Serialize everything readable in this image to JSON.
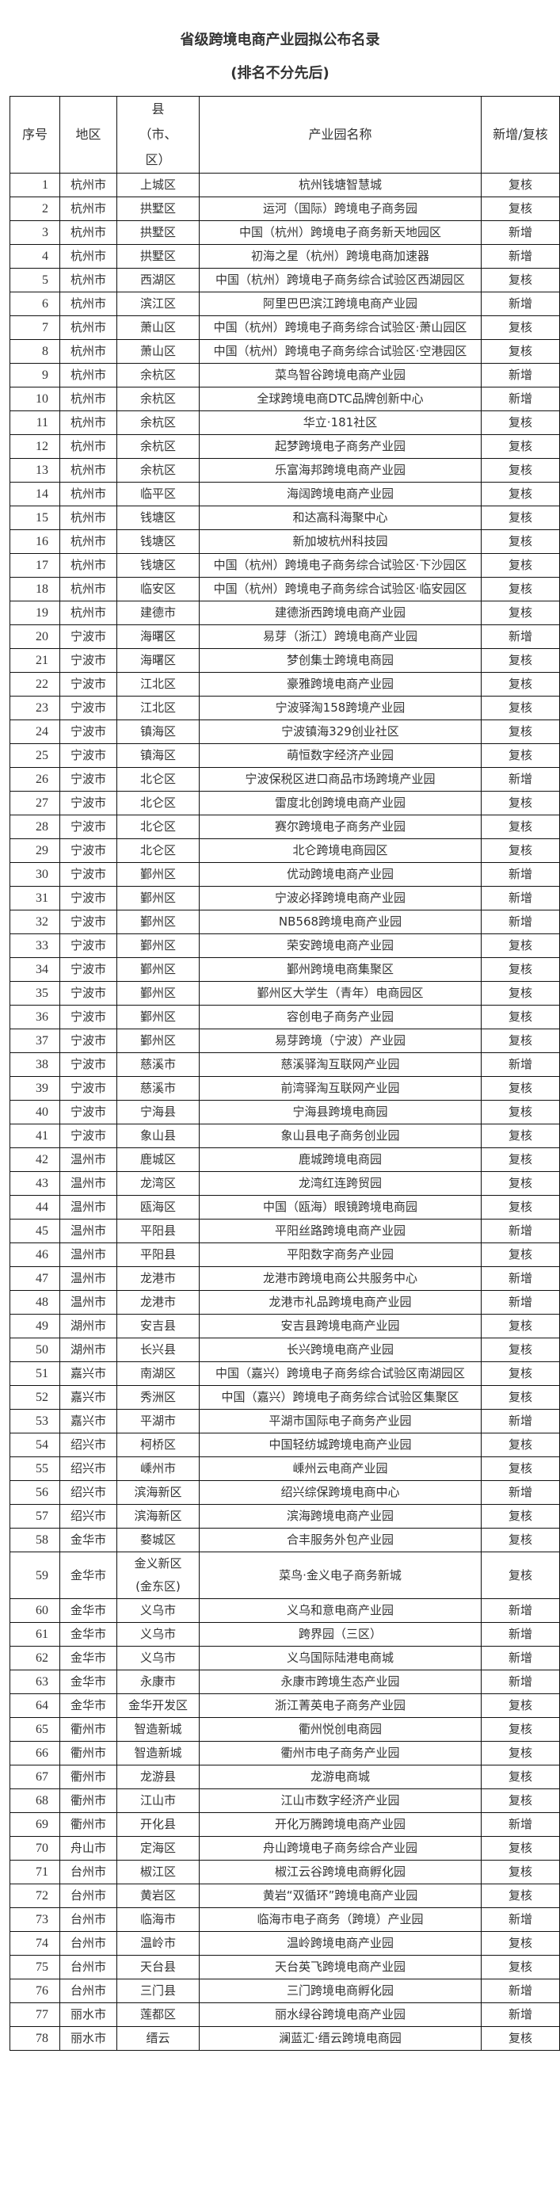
{
  "title": "省级跨境电商产业园拟公布名录",
  "subtitle": "(排名不分先后)",
  "headers": [
    "序号",
    "地区",
    "县（市、区）",
    "产业园名称",
    "新增/复核"
  ],
  "rows": [
    [
      "1",
      "杭州市",
      "上城区",
      "杭州钱塘智慧城",
      "复核"
    ],
    [
      "2",
      "杭州市",
      "拱墅区",
      "运河（国际）跨境电子商务园",
      "复核"
    ],
    [
      "3",
      "杭州市",
      "拱墅区",
      "中国（杭州）跨境电子商务新天地园区",
      "新增"
    ],
    [
      "4",
      "杭州市",
      "拱墅区",
      "初海之星（杭州）跨境电商加速器",
      "新增"
    ],
    [
      "5",
      "杭州市",
      "西湖区",
      "中国（杭州）跨境电子商务综合试验区西湖园区",
      "复核"
    ],
    [
      "6",
      "杭州市",
      "滨江区",
      "阿里巴巴滨江跨境电商产业园",
      "新增"
    ],
    [
      "7",
      "杭州市",
      "萧山区",
      "中国（杭州）跨境电子商务综合试验区·萧山园区",
      "复核"
    ],
    [
      "8",
      "杭州市",
      "萧山区",
      "中国（杭州）跨境电子商务综合试验区·空港园区",
      "复核"
    ],
    [
      "9",
      "杭州市",
      "余杭区",
      "菜鸟智谷跨境电商产业园",
      "新增"
    ],
    [
      "10",
      "杭州市",
      "余杭区",
      "全球跨境电商DTC品牌创新中心",
      "新增"
    ],
    [
      "11",
      "杭州市",
      "余杭区",
      "华立·181社区",
      "复核"
    ],
    [
      "12",
      "杭州市",
      "余杭区",
      "起梦跨境电子商务产业园",
      "复核"
    ],
    [
      "13",
      "杭州市",
      "余杭区",
      "乐富海邦跨境电商产业园",
      "复核"
    ],
    [
      "14",
      "杭州市",
      "临平区",
      "海阔跨境电商产业园",
      "复核"
    ],
    [
      "15",
      "杭州市",
      "钱塘区",
      "和达高科海聚中心",
      "复核"
    ],
    [
      "16",
      "杭州市",
      "钱塘区",
      "新加坡杭州科技园",
      "复核"
    ],
    [
      "17",
      "杭州市",
      "钱塘区",
      "中国（杭州）跨境电子商务综合试验区·下沙园区",
      "复核"
    ],
    [
      "18",
      "杭州市",
      "临安区",
      "中国（杭州）跨境电子商务综合试验区·临安园区",
      "复核"
    ],
    [
      "19",
      "杭州市",
      "建德市",
      "建德浙西跨境电商产业园",
      "复核"
    ],
    [
      "20",
      "宁波市",
      "海曙区",
      "易芽（浙江）跨境电商产业园",
      "新增"
    ],
    [
      "21",
      "宁波市",
      "海曙区",
      "梦创集士跨境电商园",
      "复核"
    ],
    [
      "22",
      "宁波市",
      "江北区",
      "豪雅跨境电商产业园",
      "复核"
    ],
    [
      "23",
      "宁波市",
      "江北区",
      "宁波驿淘158跨境产业园",
      "复核"
    ],
    [
      "24",
      "宁波市",
      "镇海区",
      "宁波镇海329创业社区",
      "复核"
    ],
    [
      "25",
      "宁波市",
      "镇海区",
      "萌恒数字经济产业园",
      "复核"
    ],
    [
      "26",
      "宁波市",
      "北仑区",
      "宁波保税区进口商品市场跨境产业园",
      "新增"
    ],
    [
      "27",
      "宁波市",
      "北仑区",
      "雷度北创跨境电商产业园",
      "复核"
    ],
    [
      "28",
      "宁波市",
      "北仑区",
      "赛尔跨境电子商务产业园",
      "复核"
    ],
    [
      "29",
      "宁波市",
      "北仑区",
      "北仑跨境电商园区",
      "复核"
    ],
    [
      "30",
      "宁波市",
      "鄞州区",
      "优动跨境电商产业园",
      "新增"
    ],
    [
      "31",
      "宁波市",
      "鄞州区",
      "宁波必择跨境电商产业园",
      "新增"
    ],
    [
      "32",
      "宁波市",
      "鄞州区",
      "NB568跨境电商产业园",
      "新增"
    ],
    [
      "33",
      "宁波市",
      "鄞州区",
      "荣安跨境电商产业园",
      "复核"
    ],
    [
      "34",
      "宁波市",
      "鄞州区",
      "鄞州跨境电商集聚区",
      "复核"
    ],
    [
      "35",
      "宁波市",
      "鄞州区",
      "鄞州区大学生（青年）电商园区",
      "复核"
    ],
    [
      "36",
      "宁波市",
      "鄞州区",
      "容创电子商务产业园",
      "复核"
    ],
    [
      "37",
      "宁波市",
      "鄞州区",
      "易芽跨境（宁波）产业园",
      "复核"
    ],
    [
      "38",
      "宁波市",
      "慈溪市",
      "慈溪驿淘互联网产业园",
      "新增"
    ],
    [
      "39",
      "宁波市",
      "慈溪市",
      "前湾驿淘互联网产业园",
      "复核"
    ],
    [
      "40",
      "宁波市",
      "宁海县",
      "宁海县跨境电商园",
      "复核"
    ],
    [
      "41",
      "宁波市",
      "象山县",
      "象山县电子商务创业园",
      "复核"
    ],
    [
      "42",
      "温州市",
      "鹿城区",
      "鹿城跨境电商园",
      "复核"
    ],
    [
      "43",
      "温州市",
      "龙湾区",
      "龙湾红连跨贸园",
      "复核"
    ],
    [
      "44",
      "温州市",
      "瓯海区",
      "中国（瓯海）眼镜跨境电商园",
      "复核"
    ],
    [
      "45",
      "温州市",
      "平阳县",
      "平阳丝路跨境电商产业园",
      "新增"
    ],
    [
      "46",
      "温州市",
      "平阳县",
      "平阳数字商务产业园",
      "复核"
    ],
    [
      "47",
      "温州市",
      "龙港市",
      "龙港市跨境电商公共服务中心",
      "新增"
    ],
    [
      "48",
      "温州市",
      "龙港市",
      "龙港市礼品跨境电商产业园",
      "新增"
    ],
    [
      "49",
      "湖州市",
      "安吉县",
      "安吉县跨境电商产业园",
      "复核"
    ],
    [
      "50",
      "湖州市",
      "长兴县",
      "长兴跨境电商产业园",
      "复核"
    ],
    [
      "51",
      "嘉兴市",
      "南湖区",
      "中国（嘉兴）跨境电子商务综合试验区南湖园区",
      "复核"
    ],
    [
      "52",
      "嘉兴市",
      "秀洲区",
      "中国（嘉兴）跨境电子商务综合试验区集聚区",
      "复核"
    ],
    [
      "53",
      "嘉兴市",
      "平湖市",
      "平湖市国际电子商务产业园",
      "新增"
    ],
    [
      "54",
      "绍兴市",
      "柯桥区",
      "中国轻纺城跨境电商产业园",
      "复核"
    ],
    [
      "55",
      "绍兴市",
      "嵊州市",
      "嵊州云电商产业园",
      "复核"
    ],
    [
      "56",
      "绍兴市",
      "滨海新区",
      "绍兴综保跨境电商中心",
      "新增"
    ],
    [
      "57",
      "绍兴市",
      "滨海新区",
      "滨海跨境电商产业园",
      "复核"
    ],
    [
      "58",
      "金华市",
      "婺城区",
      "合丰服务外包产业园",
      "复核"
    ],
    [
      "59",
      "金华市",
      "金义新区(金东区)",
      "菜鸟·金义电子商务新城",
      "复核"
    ],
    [
      "60",
      "金华市",
      "义乌市",
      "义乌和意电商产业园",
      "新增"
    ],
    [
      "61",
      "金华市",
      "义乌市",
      "跨界园（三区）",
      "新增"
    ],
    [
      "62",
      "金华市",
      "义乌市",
      "义乌国际陆港电商城",
      "新增"
    ],
    [
      "63",
      "金华市",
      "永康市",
      "永康市跨境生态产业园",
      "新增"
    ],
    [
      "64",
      "金华市",
      "金华开发区",
      "浙江菁英电子商务产业园",
      "复核"
    ],
    [
      "65",
      "衢州市",
      "智造新城",
      "衢州悦创电商园",
      "复核"
    ],
    [
      "66",
      "衢州市",
      "智造新城",
      "衢州市电子商务产业园",
      "复核"
    ],
    [
      "67",
      "衢州市",
      "龙游县",
      "龙游电商城",
      "复核"
    ],
    [
      "68",
      "衢州市",
      "江山市",
      "江山市数字经济产业园",
      "复核"
    ],
    [
      "69",
      "衢州市",
      "开化县",
      "开化万腾跨境电商产业园",
      "新增"
    ],
    [
      "70",
      "舟山市",
      "定海区",
      "舟山跨境电子商务综合产业园",
      "复核"
    ],
    [
      "71",
      "台州市",
      "椒江区",
      "椒江云谷跨境电商孵化园",
      "复核"
    ],
    [
      "72",
      "台州市",
      "黄岩区",
      "黄岩“双循环”跨境电商产业园",
      "复核"
    ],
    [
      "73",
      "台州市",
      "临海市",
      "临海市电子商务（跨境）产业园",
      "新增"
    ],
    [
      "74",
      "台州市",
      "温岭市",
      "温岭跨境电商产业园",
      "复核"
    ],
    [
      "75",
      "台州市",
      "天台县",
      "天台英飞跨境电商产业园",
      "复核"
    ],
    [
      "76",
      "台州市",
      "三门县",
      "三门跨境电商孵化园",
      "新增"
    ],
    [
      "77",
      "丽水市",
      "莲都区",
      "丽水绿谷跨境电商产业园",
      "新增"
    ],
    [
      "78",
      "丽水市",
      "缙云",
      "澜蓝汇·缙云跨境电商园",
      "复核"
    ]
  ]
}
